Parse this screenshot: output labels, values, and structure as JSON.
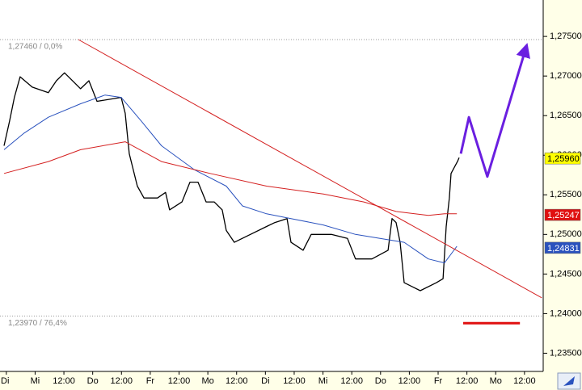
{
  "chart_data": {
    "type": "line",
    "xlim": [
      -0.22,
      18.65
    ],
    "xticks": [
      {
        "value": 0,
        "label": "Di"
      },
      {
        "value": 1,
        "label": "Mi"
      },
      {
        "value": 2,
        "label": "12:00"
      },
      {
        "value": 3,
        "label": "Do"
      },
      {
        "value": 4,
        "label": "12:00"
      },
      {
        "value": 5,
        "label": "Fr"
      },
      {
        "value": 6,
        "label": "12:00"
      },
      {
        "value": 7,
        "label": "Mo"
      },
      {
        "value": 8,
        "label": "12:00"
      },
      {
        "value": 9,
        "label": "Di"
      },
      {
        "value": 10,
        "label": "12:00"
      },
      {
        "value": 11,
        "label": "Mi"
      },
      {
        "value": 12,
        "label": "12:00"
      },
      {
        "value": 13,
        "label": "Do"
      },
      {
        "value": 14,
        "label": "12:00"
      },
      {
        "value": 15,
        "label": "Fr"
      },
      {
        "value": 16,
        "label": "12:00"
      },
      {
        "value": 17,
        "label": "Mo"
      },
      {
        "value": 18,
        "label": "12:00"
      }
    ],
    "ylim": [
      1.2327,
      1.2796
    ],
    "yticks": [
      {
        "value": 1.235,
        "label": "1,23500"
      },
      {
        "value": 1.24,
        "label": "1,24000"
      },
      {
        "value": 1.245,
        "label": "1,24500"
      },
      {
        "value": 1.25,
        "label": "1,25000"
      },
      {
        "value": 1.255,
        "label": "1,25500"
      },
      {
        "value": 1.26,
        "label": "1,26000"
      },
      {
        "value": 1.265,
        "label": "1,26500"
      },
      {
        "value": 1.27,
        "label": "1,27000"
      },
      {
        "value": 1.275,
        "label": "1,27500"
      }
    ],
    "grid": false,
    "series": [
      {
        "color": "#000000",
        "width": 1.3,
        "x": [
          -0.08,
          0.11,
          0.28,
          0.48,
          0.9,
          1.46,
          1.74,
          2.02,
          2.58,
          2.87,
          3.15,
          3.99,
          4.13,
          4.27,
          4.55,
          4.78,
          5.25,
          5.53,
          5.67,
          6.1,
          6.38,
          6.66,
          6.94,
          7.22,
          7.5,
          7.64,
          7.92,
          8.48,
          9.04,
          9.33,
          9.75,
          9.89,
          10.31,
          10.59,
          11.29,
          11.85,
          12.13,
          12.7,
          13.26,
          13.4,
          13.54,
          13.68,
          13.82,
          14.38,
          14.94,
          15.17,
          15.28,
          15.39,
          15.45,
          15.67,
          15.73
        ],
        "values": [
          1.2612,
          1.2643,
          1.2673,
          1.2699,
          1.2686,
          1.2679,
          1.2694,
          1.2704,
          1.2684,
          1.2694,
          1.2668,
          1.2673,
          1.2653,
          1.2602,
          1.2561,
          1.2546,
          1.2546,
          1.2553,
          1.2531,
          1.2541,
          1.2566,
          1.2566,
          1.2541,
          1.2541,
          1.2531,
          1.2505,
          1.249,
          1.25,
          1.251,
          1.2515,
          1.252,
          1.249,
          1.248,
          1.25,
          1.25,
          1.2495,
          1.2469,
          1.2469,
          1.248,
          1.252,
          1.2515,
          1.249,
          1.2439,
          1.2429,
          1.2439,
          1.2444,
          1.251,
          1.2546,
          1.2577,
          1.2592,
          1.2597
        ]
      },
      {
        "color": "#2a52be",
        "width": 1,
        "x": [
          -0.08,
          0.62,
          1.46,
          2.58,
          3.43,
          3.99,
          4.69,
          5.39,
          6.52,
          7.64,
          8.2,
          9.04,
          9.89,
          11.01,
          12.13,
          12.98,
          13.82,
          14.66,
          15.22,
          15.65
        ],
        "values": [
          1.2607,
          1.2628,
          1.2648,
          1.2665,
          1.2676,
          1.2673,
          1.2643,
          1.2612,
          1.2582,
          1.2561,
          1.2536,
          1.2526,
          1.252,
          1.2512,
          1.25,
          1.2495,
          1.249,
          1.2469,
          1.2464,
          1.2485
        ]
      },
      {
        "color": "#d42020",
        "width": 1,
        "x": [
          -0.08,
          1.46,
          2.58,
          4.13,
          5.39,
          7.08,
          9.04,
          11.01,
          12.42,
          13.54,
          14.66,
          15.22,
          15.65
        ],
        "values": [
          1.2577,
          1.2592,
          1.2607,
          1.2617,
          1.2592,
          1.2577,
          1.2561,
          1.2551,
          1.2541,
          1.2529,
          1.2524,
          1.2526,
          1.2526
        ]
      },
      {
        "color": "#d42020",
        "width": 1,
        "x": [
          2.5,
          18.6
        ],
        "values": [
          1.2746,
          1.242
        ]
      },
      {
        "color": "#6a1fe0",
        "width": 3,
        "arrow": true,
        "x": [
          15.79,
          16.07,
          16.71,
          18.03
        ],
        "values": [
          1.2602,
          1.2648,
          1.2573,
          1.2733
        ]
      },
      {
        "color": "#e01010",
        "width": 3,
        "x": [
          15.87,
          17.84
        ],
        "values": [
          1.2388,
          1.2388
        ]
      }
    ],
    "levels": [
      {
        "value": 1.2746,
        "label": "1,27460 / 0,0%"
      },
      {
        "value": 1.2397,
        "label": "1,23970 / 76,4%"
      }
    ],
    "price_tags": [
      {
        "value": 1.2596,
        "label": "1,25960",
        "color": "#ffff00",
        "text_color": "#000000"
      },
      {
        "value": 1.25247,
        "label": "1,25247",
        "color": "#e01010",
        "text_color": "#ffffff"
      },
      {
        "value": 1.24831,
        "label": "1,24831",
        "color": "#2a52be",
        "text_color": "#ffffff"
      }
    ]
  }
}
